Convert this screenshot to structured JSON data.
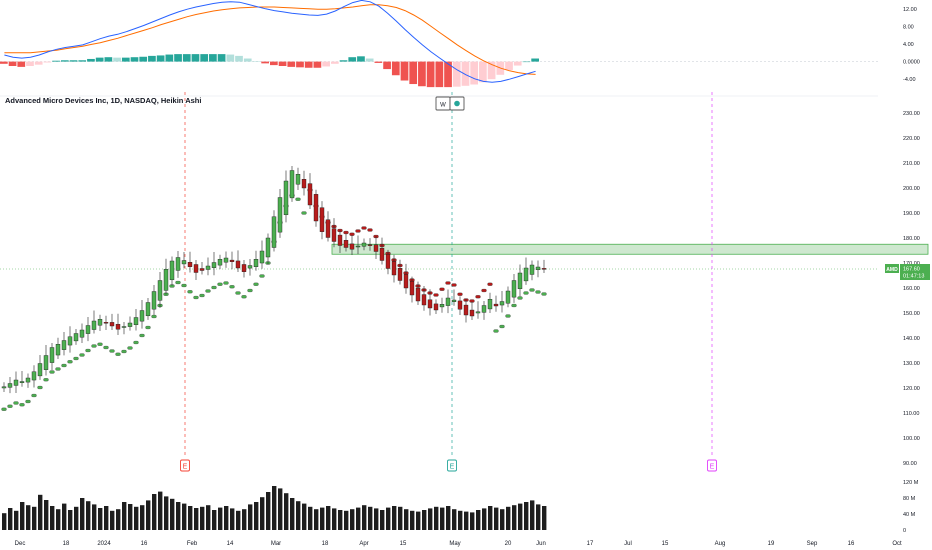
{
  "symbol_title": "Advanced Micro Devices Inc, 1D, NASDAQ, Heikin Ashi",
  "price_tag": {
    "symbol": "AMD",
    "price": "167.60",
    "countdown": "01:47:13",
    "value": 167.6
  },
  "event_badges": {
    "w_label": "W",
    "earnings_label": "E"
  },
  "colors": {
    "bull": "#26a69a",
    "bear": "#ef5350",
    "candle_up": "#4caf50",
    "candle_down": "#b71c1c",
    "macd": "#2962ff",
    "signal": "#ff6d00",
    "zone": "#a5d6a7",
    "accent_green": "#4caf50",
    "earn_red": "#f44336",
    "earn_teal": "#26a69a",
    "earn_pink": "#e040fb"
  },
  "chart_data": [
    {
      "type": "bar",
      "name_note": "MACD pane",
      "yticks": [
        "12.00",
        "8.00",
        "4.00",
        "0.0000",
        "-4.00"
      ],
      "ylim": [
        -6,
        14
      ],
      "macd_line": [
        1.5,
        1.0,
        0.8,
        1.0,
        1.5,
        2.2,
        2.8,
        3.2,
        3.5,
        3.8,
        4.5,
        5.2,
        5.8,
        6.2,
        6.8,
        7.5,
        8.2,
        9.0,
        9.8,
        10.6,
        11.3,
        11.9,
        12.4,
        12.8,
        13.2,
        13.5,
        13.6,
        13.5,
        13.0,
        12.5,
        12.0,
        11.6,
        11.3,
        11.0,
        10.8,
        10.6,
        10.5,
        10.8,
        11.5,
        12.5,
        13.4,
        13.9,
        13.6,
        12.6,
        11.0,
        9.2,
        7.3,
        5.5,
        3.8,
        2.2,
        0.8,
        -0.6,
        -1.9,
        -3.0,
        -3.9,
        -4.5,
        -4.7,
        -4.5,
        -4.0,
        -3.4,
        -2.8,
        -2.2
      ],
      "signal_line": [
        2.0,
        2.0,
        2.0,
        2.0,
        2.2,
        2.4,
        2.6,
        2.9,
        3.2,
        3.5,
        3.9,
        4.3,
        4.8,
        5.3,
        5.9,
        6.5,
        7.1,
        7.7,
        8.4,
        9.0,
        9.6,
        10.2,
        10.7,
        11.1,
        11.5,
        11.8,
        12.0,
        12.2,
        12.3,
        12.4,
        12.4,
        12.4,
        12.3,
        12.2,
        12.1,
        12.0,
        11.9,
        11.9,
        12.0,
        12.2,
        12.4,
        12.7,
        12.9,
        12.9,
        12.7,
        12.3,
        11.6,
        10.6,
        9.4,
        8.0,
        6.6,
        5.2,
        3.8,
        2.5,
        1.3,
        0.2,
        -0.7,
        -1.5,
        -2.1,
        -2.5,
        -2.8,
        -2.9
      ],
      "histogram": [
        -0.5,
        -1.0,
        -1.2,
        -1.0,
        -0.7,
        -0.2,
        0.2,
        0.3,
        0.3,
        0.3,
        0.6,
        0.9,
        1.0,
        0.9,
        0.9,
        1.0,
        1.1,
        1.3,
        1.4,
        1.6,
        1.7,
        1.7,
        1.7,
        1.7,
        1.7,
        1.7,
        1.6,
        1.3,
        0.7,
        0.1,
        -0.4,
        -0.8,
        -1.0,
        -1.2,
        -1.3,
        -1.4,
        -1.4,
        -1.1,
        -0.5,
        0.3,
        1.0,
        1.2,
        0.7,
        -0.3,
        -1.7,
        -3.1,
        -4.3,
        -5.1,
        -5.6,
        -5.8,
        -5.8,
        -5.8,
        -5.7,
        -5.5,
        -5.2,
        -4.7,
        -4.0,
        -3.0,
        -1.9,
        -0.9,
        0.0,
        0.7
      ]
    },
    {
      "type": "candlestick",
      "name_note": "Heikin Ashi price pane",
      "yticks": [
        "230.00",
        "220.00",
        "210.00",
        "200.00",
        "190.00",
        "180.00",
        "170.00",
        "160.00",
        "150.00",
        "140.00",
        "130.00",
        "120.00",
        "110.00",
        "100.00",
        "90.00"
      ],
      "ylim": [
        88,
        232
      ],
      "x_labels": [
        "Dec",
        "18",
        "2024",
        "16",
        "Feb",
        "14",
        "Mar",
        "18",
        "Apr",
        "15",
        "May",
        "20",
        "Jun",
        "17",
        "Jul",
        "15",
        "Aug",
        "19",
        "Sep",
        "16",
        "Oct"
      ],
      "close": [
        120.5,
        121.8,
        123.2,
        122.6,
        124.0,
        126.5,
        129.8,
        133.0,
        136.2,
        137.5,
        139.0,
        140.5,
        141.8,
        143.2,
        145.0,
        146.8,
        147.5,
        146.2,
        144.8,
        143.5,
        144.6,
        146.0,
        148.2,
        151.0,
        154.2,
        158.6,
        163.0,
        167.5,
        170.8,
        172.2,
        171.0,
        168.5,
        166.2,
        167.0,
        168.8,
        170.2,
        171.5,
        172.0,
        170.5,
        168.0,
        166.5,
        169.0,
        171.5,
        174.8,
        180.0,
        188.5,
        196.2,
        202.8,
        207.0,
        205.5,
        200.0,
        193.2,
        186.8,
        182.5,
        180.2,
        178.6,
        177.0,
        176.2,
        175.5,
        176.8,
        178.0,
        177.2,
        174.6,
        171.0,
        167.8,
        165.2,
        163.0,
        160.0,
        157.2,
        154.8,
        153.2,
        152.0,
        151.2,
        153.5,
        156.0,
        155.2,
        151.5,
        149.2,
        148.8,
        150.5,
        153.0,
        155.5,
        152.8,
        154.6,
        158.8,
        163.0,
        166.0,
        168.0,
        169.2,
        168.4,
        167.6
      ],
      "volume": [
        42,
        55,
        48,
        70,
        62,
        58,
        88,
        75,
        60,
        52,
        66,
        50,
        58,
        80,
        72,
        64,
        55,
        60,
        48,
        52,
        70,
        65,
        58,
        62,
        74,
        90,
        96,
        84,
        78,
        70,
        66,
        60,
        55,
        58,
        62,
        50,
        56,
        60,
        54,
        48,
        52,
        64,
        70,
        82,
        95,
        110,
        104,
        92,
        80,
        72,
        66,
        58,
        52,
        56,
        60,
        54,
        50,
        48,
        52,
        56,
        62,
        58,
        54,
        50,
        56,
        60,
        58,
        52,
        48,
        46,
        50,
        54,
        58,
        56,
        60,
        52,
        48,
        46,
        44,
        50,
        54,
        60,
        56,
        52,
        58,
        62,
        66,
        70,
        74,
        64,
        60
      ],
      "vol_yticks": [
        "120 M",
        "80 M",
        "40 M",
        "0"
      ]
    }
  ]
}
